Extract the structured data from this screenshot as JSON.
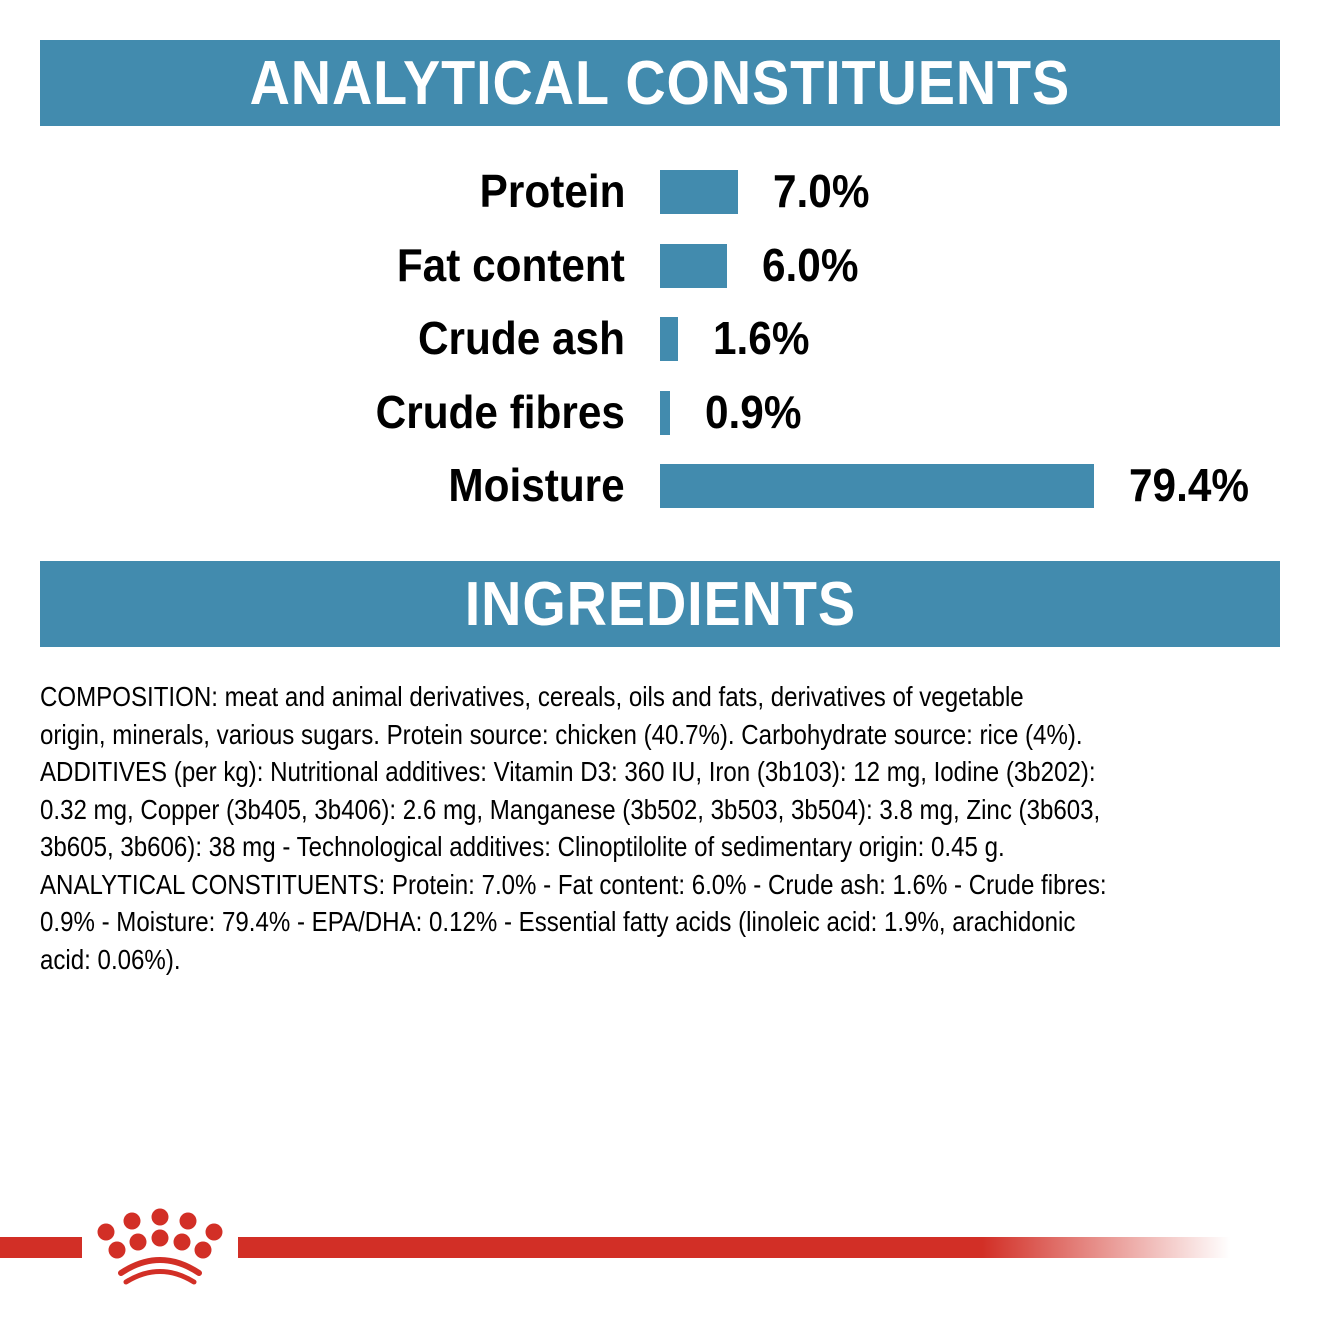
{
  "header_constituents": "ANALYTICAL CONSTITUENTS",
  "header_ingredients": "INGREDIENTS",
  "colors": {
    "band": "#428bae",
    "bar": "#428bae",
    "brand_red": "#d22f26"
  },
  "chart_data": {
    "type": "bar",
    "orientation": "horizontal",
    "categories": [
      "Protein",
      "Fat content",
      "Crude ash",
      "Crude fibres",
      "Moisture"
    ],
    "values": [
      7.0,
      6.0,
      1.6,
      0.9,
      79.4
    ],
    "value_labels": [
      "7.0%",
      "6.0%",
      "1.6%",
      "0.9%",
      "79.4%"
    ],
    "unit": "%",
    "grid": false
  },
  "ingredients_lines": [
    "COMPOSITION: meat and animal derivatives, cereals, oils and fats, derivatives of vegetable",
    "origin, minerals, various sugars. Protein source: chicken (40.7%). Carbohydrate source: rice (4%).",
    "ADDITIVES (per kg): Nutritional additives: Vitamin D3: 360 IU, Iron (3b103): 12 mg, Iodine (3b202):",
    "0.32 mg, Copper (3b405, 3b406): 2.6 mg, Manganese (3b502, 3b503, 3b504): 3.8 mg, Zinc (3b603,",
    "3b605, 3b606): 38 mg - Technological additives: Clinoptilolite of sedimentary origin: 0.45 g.",
    "ANALYTICAL CONSTITUENTS: Protein: 7.0% - Fat content: 6.0% - Crude ash: 1.6% - Crude fibres:",
    "0.9% - Moisture: 79.4% - EPA/DHA: 0.12% - Essential fatty acids (linoleic acid: 1.9%, arachidonic",
    "acid: 0.06%)."
  ],
  "logo": {
    "name": "crown-logo-icon"
  }
}
